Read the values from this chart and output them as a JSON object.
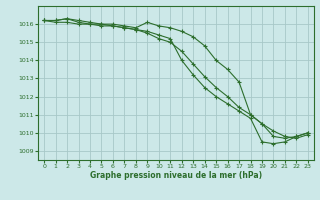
{
  "background_color": "#cce8e8",
  "grid_color": "#a8c8c8",
  "line_color": "#2d6e2d",
  "xlabel": "Graphe pression niveau de la mer (hPa)",
  "ylim": [
    1008.5,
    1017.0
  ],
  "xlim": [
    -0.5,
    23.5
  ],
  "yticks": [
    1009,
    1010,
    1011,
    1012,
    1013,
    1014,
    1015,
    1016
  ],
  "xticks": [
    0,
    1,
    2,
    3,
    4,
    5,
    6,
    7,
    8,
    9,
    10,
    11,
    12,
    13,
    14,
    15,
    16,
    17,
    18,
    19,
    20,
    21,
    22,
    23
  ],
  "series": [
    [
      1016.2,
      1016.2,
      1016.3,
      1016.2,
      1016.1,
      1016.0,
      1016.0,
      1015.9,
      1015.8,
      1016.1,
      1015.9,
      1015.8,
      1015.6,
      1015.3,
      1014.8,
      1014.0,
      1013.5,
      1012.8,
      1011.0,
      1010.5,
      1009.8,
      1009.7,
      1009.8,
      1010.0
    ],
    [
      1016.2,
      1016.2,
      1016.3,
      1016.1,
      1016.0,
      1015.9,
      1015.9,
      1015.8,
      1015.7,
      1015.5,
      1015.2,
      1015.0,
      1014.5,
      1013.8,
      1013.1,
      1012.5,
      1012.0,
      1011.4,
      1011.0,
      1010.5,
      1010.1,
      1009.8,
      1009.7,
      1009.9
    ],
    [
      1016.2,
      1016.1,
      1016.1,
      1016.0,
      1016.0,
      1016.0,
      1015.9,
      1015.8,
      1015.7,
      1015.6,
      1015.4,
      1015.2,
      1014.0,
      1013.2,
      1012.5,
      1012.0,
      1011.6,
      1011.2,
      1010.8,
      1009.5,
      1009.4,
      1009.5,
      1009.8,
      1010.0
    ]
  ]
}
